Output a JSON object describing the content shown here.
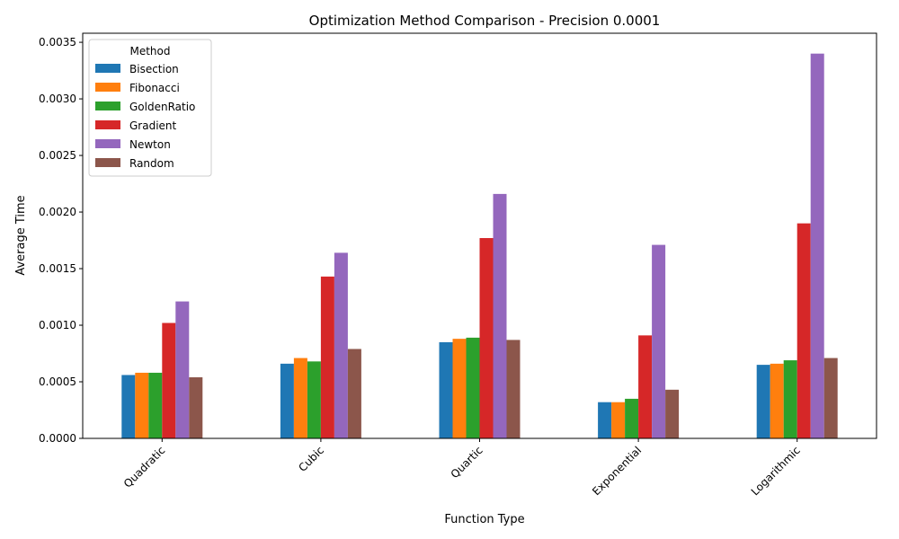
{
  "chart_data": {
    "type": "bar",
    "title": "Optimization Method Comparison - Precision 0.0001",
    "xlabel": "Function Type",
    "ylabel": "Average Time",
    "categories": [
      "Quadratic",
      "Cubic",
      "Quartic",
      "Exponential",
      "Logarithmic"
    ],
    "ylim": [
      0,
      0.00358
    ],
    "yticks": [
      0.0,
      0.0005,
      0.001,
      0.0015,
      0.002,
      0.0025,
      0.003,
      0.0035
    ],
    "ytick_labels": [
      "0.0000",
      "0.0005",
      "0.0010",
      "0.0015",
      "0.0020",
      "0.0025",
      "0.0030",
      "0.0035"
    ],
    "grid": false,
    "legend": {
      "title": "Method",
      "placement": "top-left"
    },
    "series": [
      {
        "name": "Bisection",
        "color": "#1f77b4",
        "values": [
          0.00056,
          0.00066,
          0.00085,
          0.00032,
          0.00065
        ]
      },
      {
        "name": "Fibonacci",
        "color": "#ff7f0e",
        "values": [
          0.00058,
          0.00071,
          0.00088,
          0.00032,
          0.00066
        ]
      },
      {
        "name": "GoldenRatio",
        "color": "#2ca02c",
        "values": [
          0.00058,
          0.00068,
          0.00089,
          0.00035,
          0.00069
        ]
      },
      {
        "name": "Gradient",
        "color": "#d62728",
        "values": [
          0.00102,
          0.00143,
          0.00177,
          0.00091,
          0.0019
        ]
      },
      {
        "name": "Newton",
        "color": "#9467bd",
        "values": [
          0.00121,
          0.00164,
          0.00216,
          0.00171,
          0.0034
        ]
      },
      {
        "name": "Random",
        "color": "#8c564b",
        "values": [
          0.00054,
          0.00079,
          0.00087,
          0.00043,
          0.00071
        ]
      }
    ]
  }
}
